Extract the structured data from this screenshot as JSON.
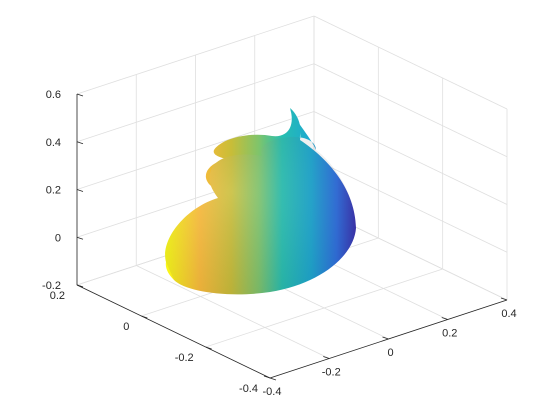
{
  "chart_data": {
    "type": "surface",
    "title": "",
    "xlabel": "",
    "ylabel": "",
    "zlabel": "",
    "grid": true,
    "colormap": [
      "#3e26a8",
      "#2f6fe0",
      "#1ca7d1",
      "#27bfb0",
      "#7fc46b",
      "#c8bd38",
      "#fbbb3a",
      "#f9fb15"
    ],
    "axes": {
      "x": {
        "lim": [
          -0.4,
          0.4
        ],
        "ticks": [
          -0.4,
          -0.2,
          0,
          0.2,
          0.4
        ],
        "tick_labels": [
          "-0.4",
          "-0.2",
          "0",
          "0.2",
          "0.4"
        ]
      },
      "y": {
        "lim": [
          -0.4,
          0.2
        ],
        "ticks": [
          -0.4,
          -0.2,
          0,
          0.2
        ],
        "tick_labels": [
          "-0.4",
          "-0.2",
          "0",
          "0.2"
        ]
      },
      "z": {
        "lim": [
          -0.2,
          0.6
        ],
        "ticks": [
          -0.2,
          0,
          0.2,
          0.4,
          0.6
        ],
        "tick_labels": [
          "-0.2",
          "0",
          "0.2",
          "0.4",
          "0.6"
        ]
      }
    },
    "shape": "spiral shell surface (snail-like)",
    "approx_extent": {
      "x": [
        -0.35,
        0.35
      ],
      "y": [
        -0.35,
        0.15
      ],
      "z": [
        -0.2,
        0.55
      ]
    }
  }
}
